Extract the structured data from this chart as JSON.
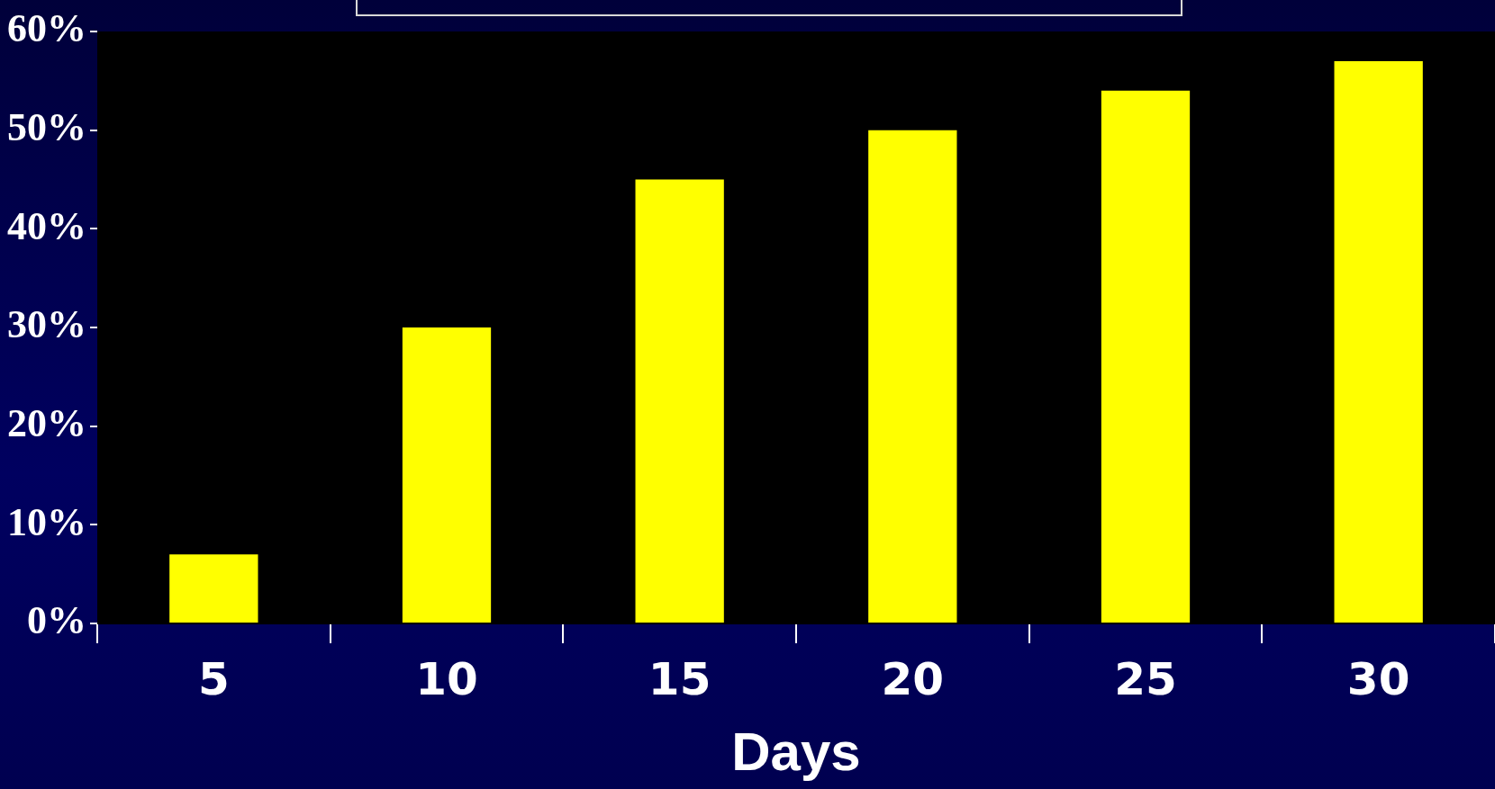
{
  "chart_data": {
    "type": "bar",
    "xlabel": "Days",
    "categories": [
      "5",
      "10",
      "15",
      "20",
      "25",
      "30"
    ],
    "values": [
      7,
      30,
      45,
      50,
      54,
      57
    ],
    "color": "#ffff00",
    "ylim": [
      0,
      60
    ],
    "yticks": [
      {
        "value": 0,
        "label": "0%"
      },
      {
        "value": 10,
        "label": "10%"
      },
      {
        "value": 20,
        "label": "20%"
      },
      {
        "value": 30,
        "label": "30%"
      },
      {
        "value": 40,
        "label": "40%"
      },
      {
        "value": 50,
        "label": "50%"
      },
      {
        "value": 60,
        "label": "60%"
      }
    ],
    "grid": false,
    "legend": false
  }
}
